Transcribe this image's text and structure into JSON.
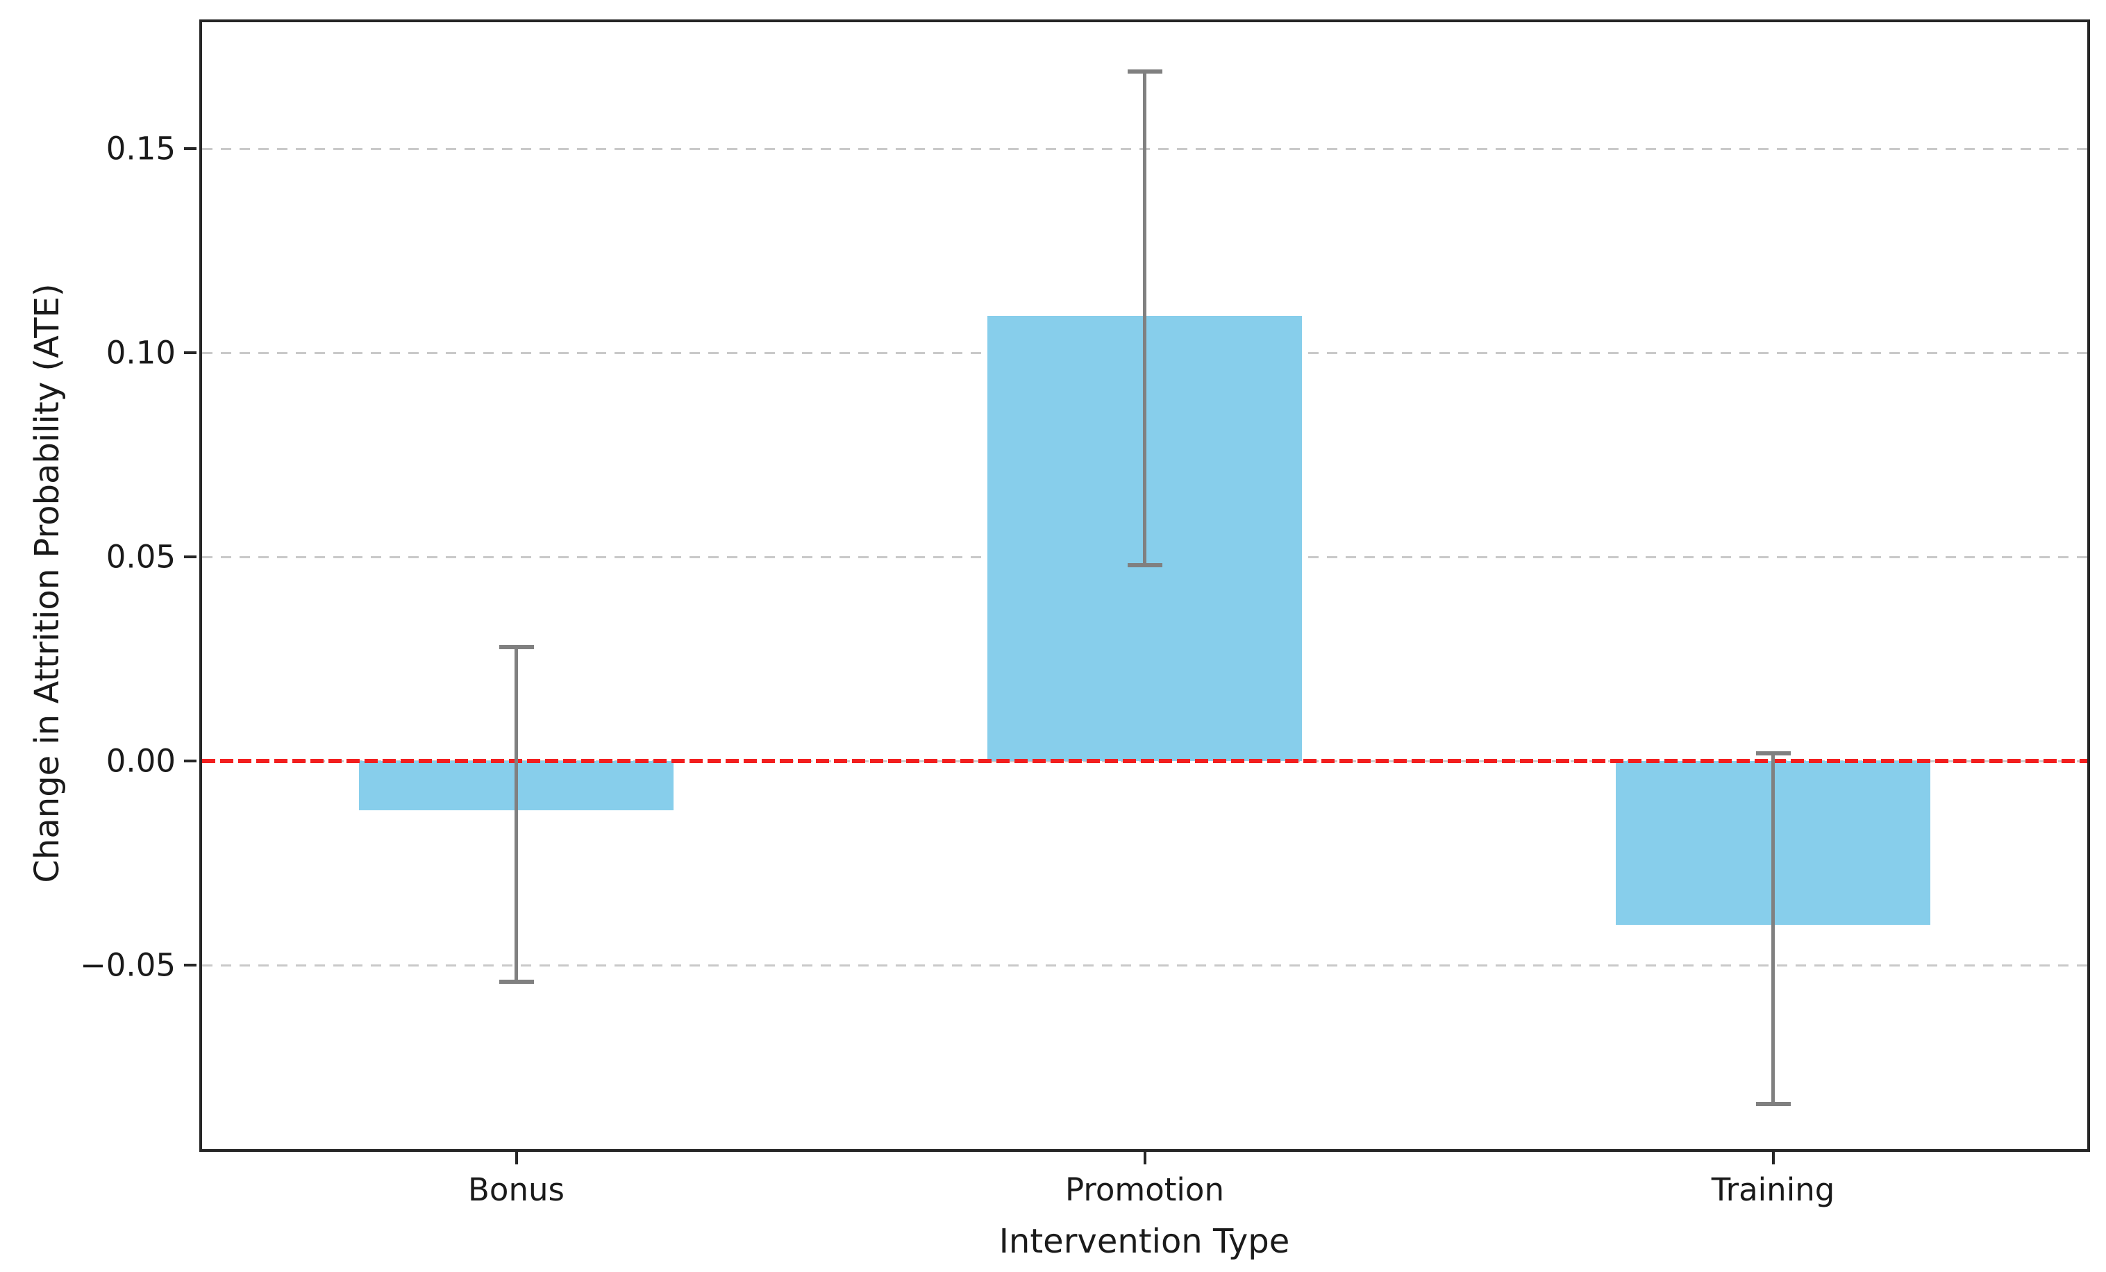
{
  "chart_data": {
    "type": "bar",
    "title": "",
    "xlabel": "Intervention Type",
    "ylabel": "Change in Attrition Probability (ATE)",
    "categories": [
      "Bonus",
      "Promotion",
      "Training"
    ],
    "values": [
      -0.012,
      0.109,
      -0.04
    ],
    "error_low": [
      -0.054,
      0.048,
      -0.084
    ],
    "error_high": [
      0.028,
      0.169,
      0.002
    ],
    "ylim": [
      -0.095,
      0.181
    ],
    "yticks": [
      0.15,
      0.1,
      0.05,
      0.0,
      -0.05
    ],
    "ytick_labels": [
      "0.15",
      "0.10",
      "0.05",
      "0.00",
      "−0.05"
    ],
    "bar_width_fraction": 0.5,
    "grid": {
      "axis": "y",
      "style": "dashed",
      "color": "#c9c9c9"
    },
    "zero_line": {
      "value": 0.0,
      "style": "dashed",
      "color": "#f21f1f"
    },
    "legend": null,
    "colors": {
      "bar": "#87CEEB",
      "error": "#808080",
      "spine": "#262626",
      "text": "#1a1a1a"
    }
  }
}
